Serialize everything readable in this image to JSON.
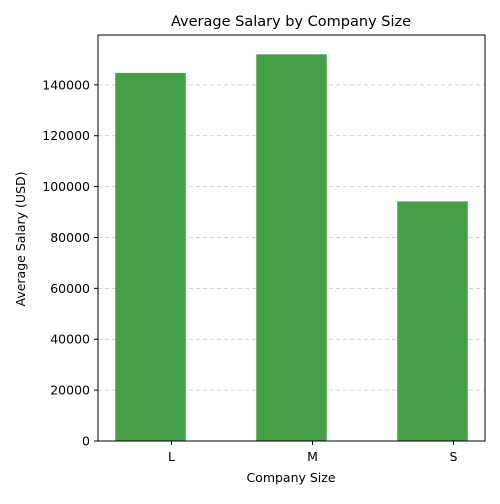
{
  "chart_data": {
    "type": "bar",
    "title": "Average Salary by Company Size",
    "xlabel": "Company Size",
    "ylabel": "Average Salary (USD)",
    "categories": [
      "L",
      "M",
      "S"
    ],
    "values": [
      144700,
      152000,
      94200
    ],
    "ylim": [
      0,
      159600
    ],
    "yticks": [
      0,
      20000,
      40000,
      60000,
      80000,
      100000,
      120000,
      140000
    ],
    "ytick_labels": [
      "0",
      "20000",
      "40000",
      "60000",
      "80000",
      "100000",
      "120000",
      "140000"
    ],
    "grid": {
      "y": true,
      "x": false,
      "style": "dashed"
    },
    "bar_color": "#43a047",
    "grid_color": "#c8c8c8",
    "axis_color": "#000000"
  }
}
